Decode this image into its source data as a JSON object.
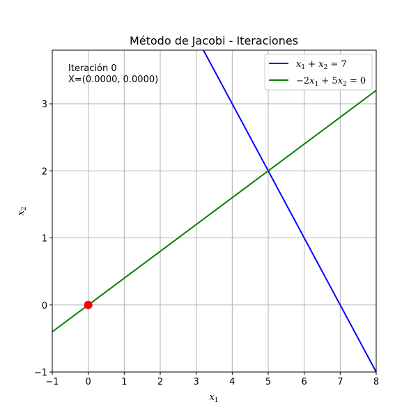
{
  "chart_data": {
    "type": "line",
    "title": "Método de Jacobi - Iteraciones",
    "xlabel": "x1",
    "ylabel": "x2",
    "xlim": [
      -1,
      8
    ],
    "ylim": [
      -1,
      3.8
    ],
    "xticks": [
      -1,
      0,
      1,
      2,
      3,
      4,
      5,
      6,
      7,
      8
    ],
    "yticks": [
      -1,
      0,
      1,
      2,
      3
    ],
    "grid": true,
    "legend_position": "top-right",
    "series": [
      {
        "name": "x1 + x2 = 7",
        "color": "#0000ff",
        "x": [
          3.2,
          8
        ],
        "y": [
          3.8,
          -1
        ]
      },
      {
        "name": "-2x1 + 5x2 = 0",
        "color": "#008000",
        "x": [
          -1,
          8
        ],
        "y": [
          -0.4,
          3.2
        ]
      }
    ],
    "points": [
      {
        "x": 0,
        "y": 0,
        "color": "#ff0000"
      }
    ],
    "annotation": {
      "line1": "Iteración 0",
      "line2": "X=(0.0000, 0.0000)"
    }
  }
}
